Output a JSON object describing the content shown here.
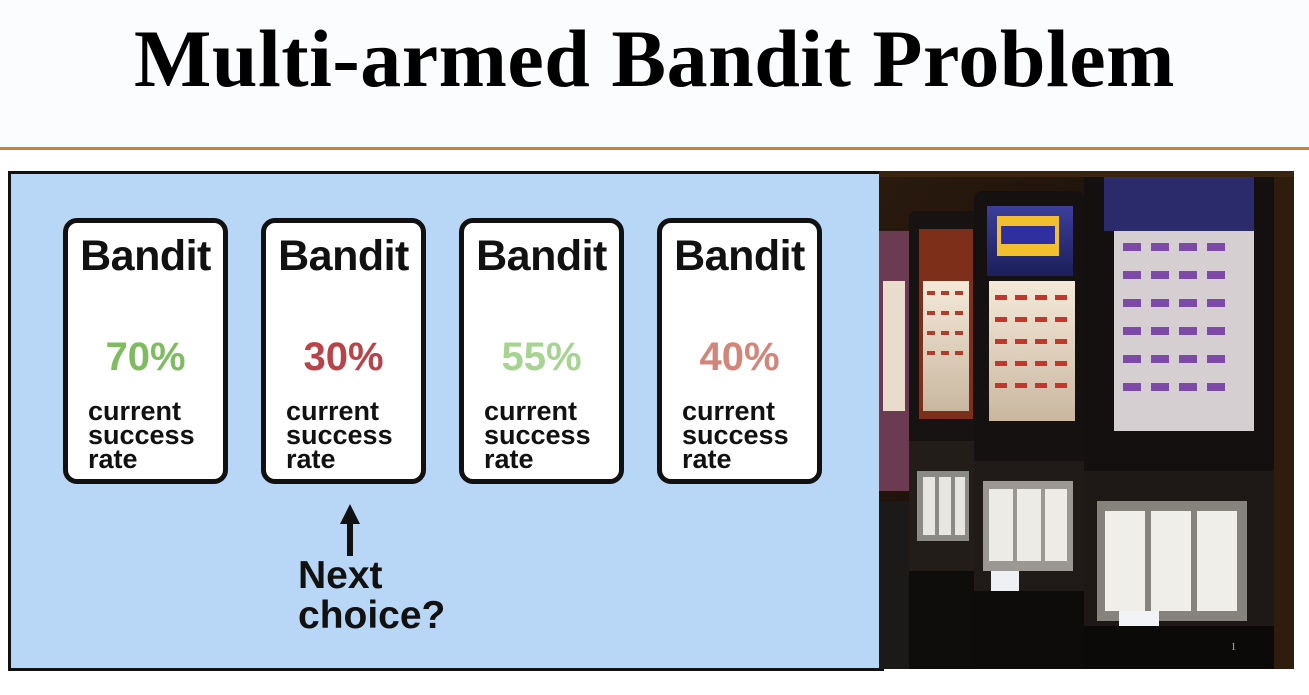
{
  "slide": {
    "title": "Multi-armed Bandit Problem",
    "number": "1"
  },
  "bandits": [
    {
      "heading": "Bandit",
      "rate": "70%",
      "caption_lines": [
        "current",
        "success",
        "rate"
      ],
      "color": "#7ebc5f"
    },
    {
      "heading": "Bandit",
      "rate": "30%",
      "caption_lines": [
        "current",
        "success",
        "rate"
      ],
      "color": "#b8444a"
    },
    {
      "heading": "Bandit",
      "rate": "55%",
      "caption_lines": [
        "current",
        "success",
        "rate"
      ],
      "color": "#a7d493"
    },
    {
      "heading": "Bandit",
      "rate": "40%",
      "caption_lines": [
        "current",
        "success",
        "rate"
      ],
      "color": "#d48579"
    }
  ],
  "pointer": {
    "target_index": 1,
    "lines": [
      "Next",
      "choice?"
    ]
  },
  "colors": {
    "accent_rule": "#cd7f3c",
    "panel_background": "#b8d6f6"
  },
  "photo": {
    "subject_icon": "slot-machine-photo"
  }
}
